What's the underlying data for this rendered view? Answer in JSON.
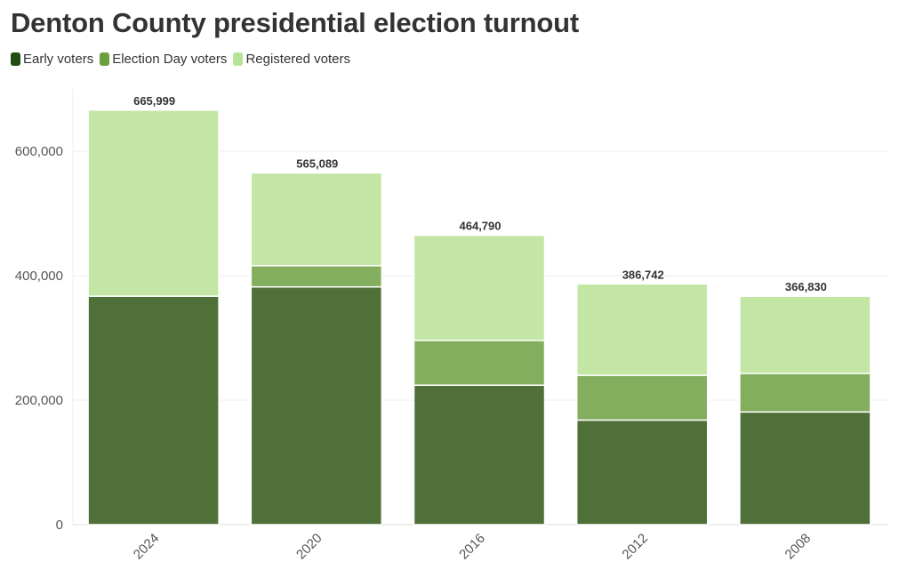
{
  "title": "Denton County presidential election turnout",
  "chart_data": {
    "type": "bar",
    "stacked": true,
    "title": "Denton County presidential election turnout",
    "categories": [
      "2024",
      "2020",
      "2016",
      "2012",
      "2008"
    ],
    "series": [
      {
        "name": "Early voters",
        "color": "#4f7139",
        "values": [
          367000,
          382000,
          224000,
          168000,
          181000
        ]
      },
      {
        "name": "Election Day voters",
        "color": "#82ae5e",
        "values": [
          0,
          34000,
          72000,
          72000,
          62000
        ]
      },
      {
        "name": "Registered voters",
        "color": "#c3e6a5",
        "values": [
          298999,
          149089,
          168790,
          146742,
          123830
        ]
      }
    ],
    "totals": [
      665999,
      565089,
      464790,
      386742,
      366830
    ],
    "total_labels": [
      "665,999",
      "565,089",
      "464,790",
      "386,742",
      "366,830"
    ],
    "yticks": [
      0,
      200000,
      400000,
      600000
    ],
    "ytick_labels": [
      "0",
      "200,000",
      "400,000",
      "600,000"
    ],
    "ylim": [
      0,
      700000
    ],
    "xlabel": "",
    "ylabel": "",
    "legend_position": "top-left"
  }
}
